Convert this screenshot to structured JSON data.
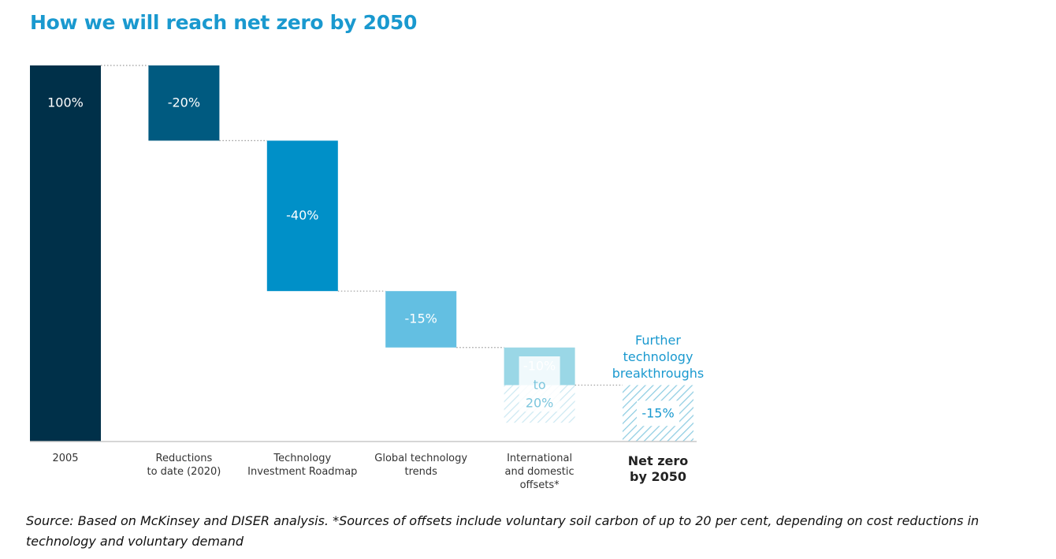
{
  "title": "How we will reach net zero by 2050",
  "source_note": "Source: Based on McKinsey and DISER analysis. *Sources of offsets include voluntary soil carbon of up to 20 per cent, depending on cost reductions in technology and voluntary demand",
  "colors": {
    "title": "#1a99cf",
    "bar_2005": "#003049",
    "bar_reductions": "#005a80",
    "bar_roadmap": "#0090c8",
    "bar_global": "#63bfe2",
    "bar_offsets": "#9ad7e6",
    "hatch_offsets": "#cde9f2",
    "hatch_breakthrough": "#8fcde2",
    "annotation": "#1a99cf",
    "baseline": "#c8c8c8",
    "connector": "#9a9a9a"
  },
  "chart_data": {
    "type": "waterfall",
    "title": "How we will reach net zero by 2050",
    "ylim": [
      0,
      100
    ],
    "unit": "% of 2005 emissions",
    "steps": [
      {
        "category": [
          "2005"
        ],
        "label": [
          "100%"
        ],
        "start": 0,
        "end": 100,
        "kind": "total",
        "color_key": "bar_2005"
      },
      {
        "category": [
          "Reductions",
          "to date (2020)"
        ],
        "label": [
          "-20%"
        ],
        "start": 100,
        "end": 80,
        "kind": "decrease",
        "color_key": "bar_reductions"
      },
      {
        "category": [
          "Technology",
          "Investment Roadmap"
        ],
        "label": [
          "-40%"
        ],
        "start": 80,
        "end": 40,
        "kind": "decrease",
        "color_key": "bar_roadmap"
      },
      {
        "category": [
          "Global technology",
          "trends"
        ],
        "label": [
          "-15%"
        ],
        "start": 40,
        "end": 25,
        "kind": "decrease",
        "color_key": "bar_global"
      },
      {
        "category": [
          "International",
          "and domestic",
          "offsets*"
        ],
        "label": [
          "-10%",
          "to",
          "20%"
        ],
        "start": 25,
        "end": 15,
        "range_end": 5,
        "kind": "range",
        "color_key": "bar_offsets"
      },
      {
        "category": [
          "Net zero",
          "by 2050"
        ],
        "label": [
          "-15%"
        ],
        "start": 15,
        "end": 0,
        "kind": "hatched",
        "bold_category": true,
        "annotation": [
          "Further",
          "technology",
          "breakthroughs"
        ],
        "color_key": "hatch_breakthrough"
      }
    ]
  }
}
